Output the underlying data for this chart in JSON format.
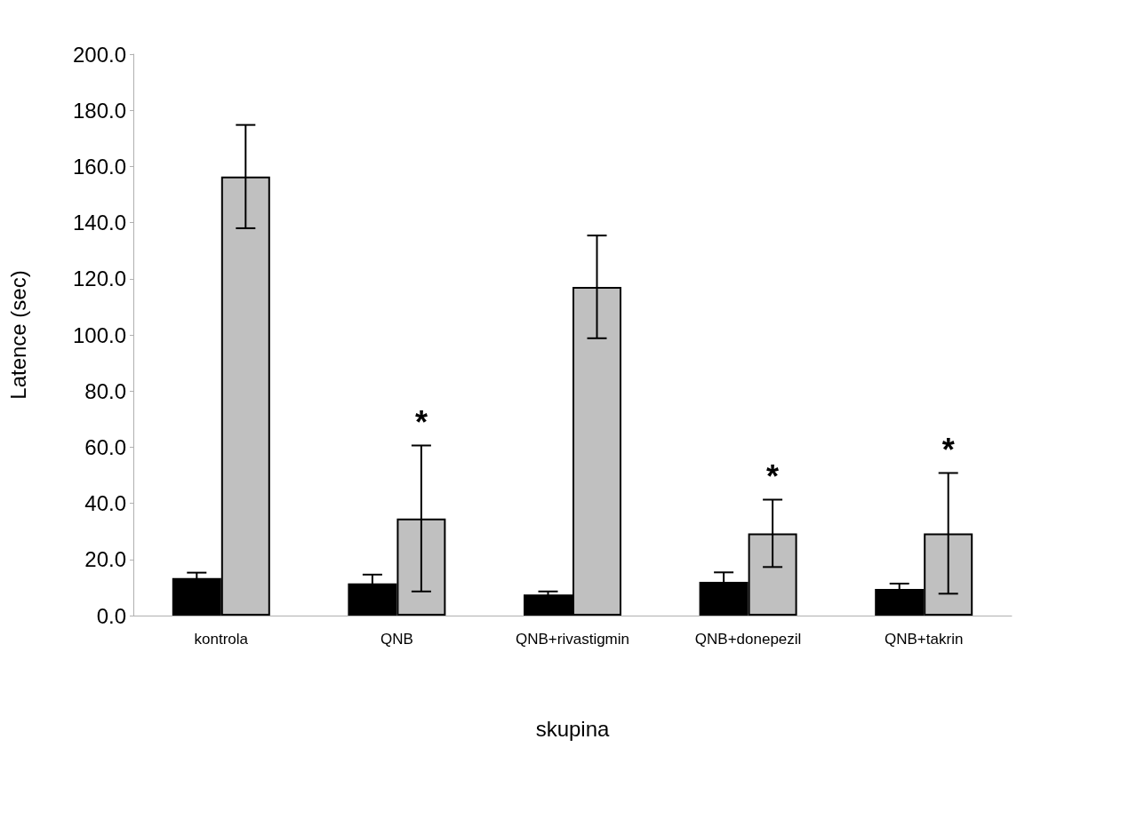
{
  "chart_data": {
    "type": "bar",
    "xlabel": "skupina",
    "ylabel": "Latence (sec)",
    "categories": [
      "kontrola",
      "QNB",
      "QNB+rivastigmin",
      "QNB+donepezil",
      "QNB+takrin"
    ],
    "series": [
      {
        "color": "#000000",
        "values": [
          13.4,
          11.5,
          7.5,
          12.0,
          9.5
        ],
        "errors": [
          1.9,
          3.1,
          1.1,
          3.4,
          1.9
        ]
      },
      {
        "color": "#c0c0c0",
        "values": [
          156.4,
          34.6,
          117.1,
          29.3,
          29.3
        ],
        "errors": [
          18.4,
          26.0,
          18.3,
          12.0,
          21.5
        ],
        "value_labels": [
          null,
          "*",
          null,
          "*",
          "*"
        ]
      }
    ],
    "ylim": [
      0,
      200
    ],
    "yticks": [
      {
        "value": 0,
        "label": "0.0"
      },
      {
        "value": 20,
        "label": "20.0"
      },
      {
        "value": 40,
        "label": "40.0"
      },
      {
        "value": 60,
        "label": "60.0"
      },
      {
        "value": 80,
        "label": "80.0"
      },
      {
        "value": 100,
        "label": "100.0"
      },
      {
        "value": 120,
        "label": "120.0"
      },
      {
        "value": 140,
        "label": "140.0"
      },
      {
        "value": 160,
        "label": "160.0"
      },
      {
        "value": 180,
        "label": "180.0"
      },
      {
        "value": 200,
        "label": "200.0"
      }
    ],
    "grid": false
  }
}
